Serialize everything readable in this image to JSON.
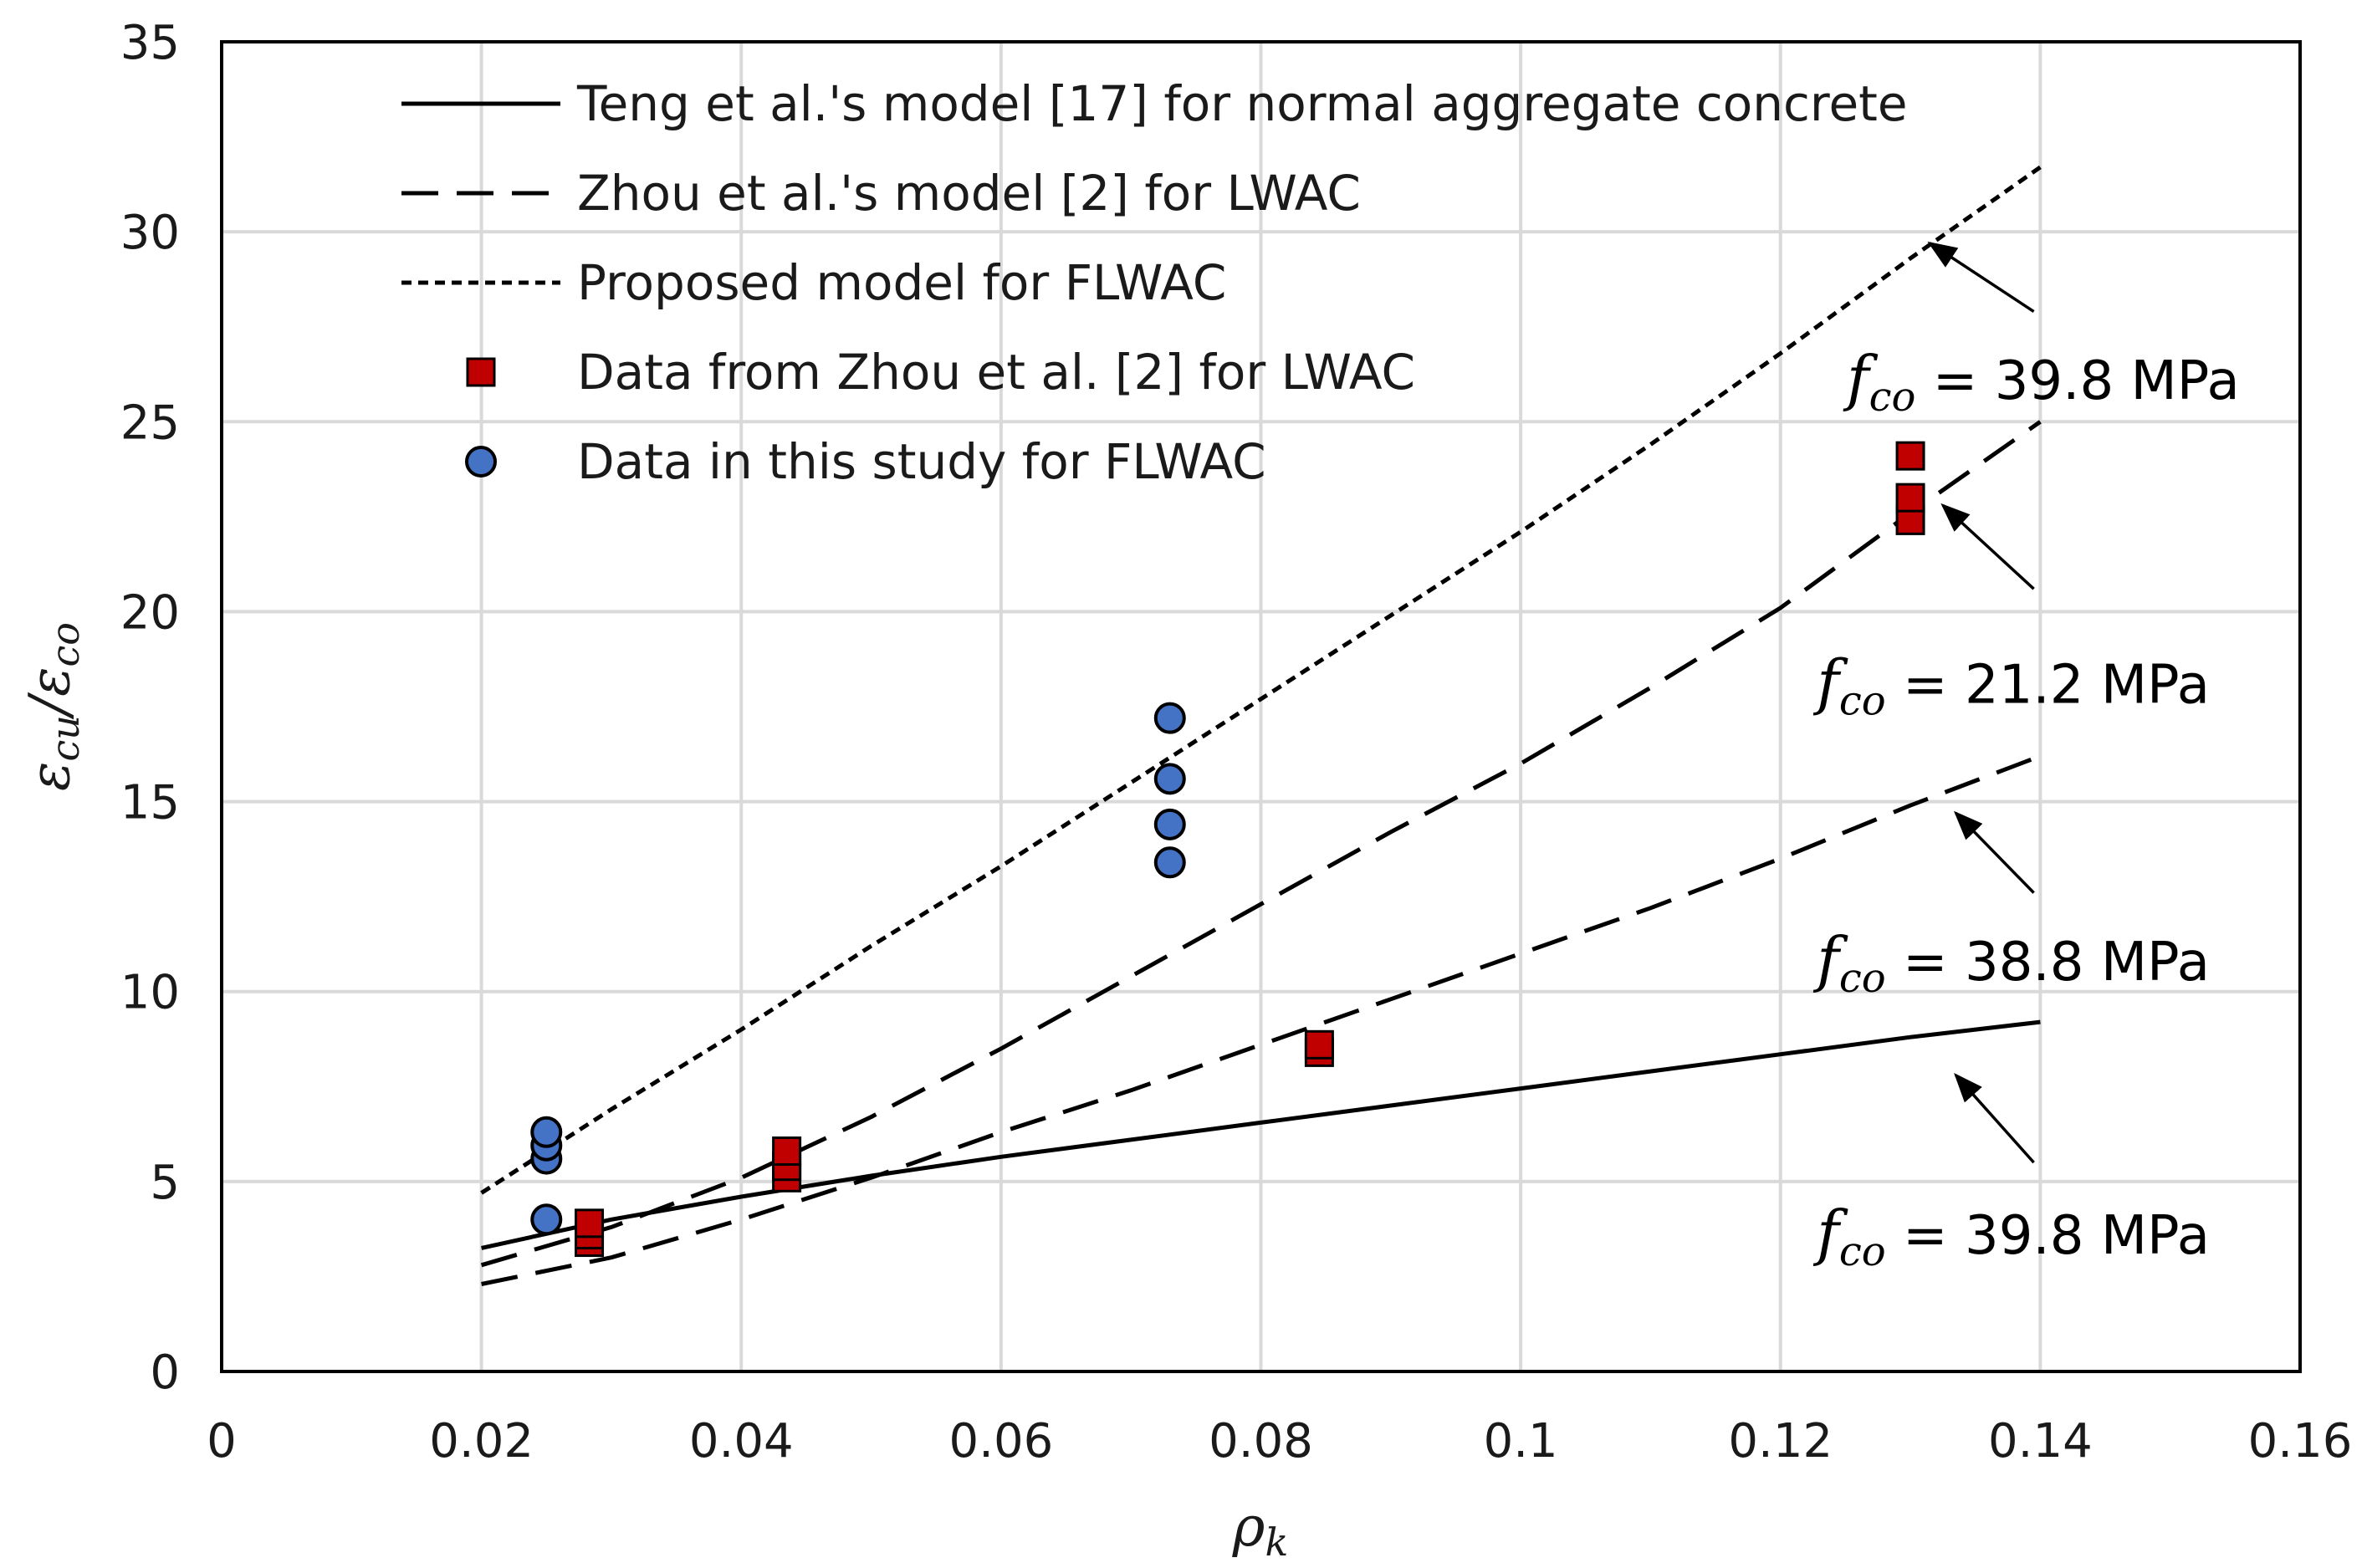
{
  "chart_data": {
    "type": "scatter",
    "title": "",
    "xlabel": "ρk",
    "ylabel": "εcu/εco",
    "xlim": [
      0,
      0.16
    ],
    "ylim": [
      0,
      35
    ],
    "xticks": [
      0,
      0.02,
      0.04,
      0.06,
      0.08,
      0.1,
      0.12,
      0.14,
      0.16
    ],
    "xtick_labels": [
      "0",
      "0.02",
      "0.04",
      "0.06",
      "0.08",
      "0.1",
      "0.12",
      "0.14",
      "0.16"
    ],
    "yticks": [
      0,
      5,
      10,
      15,
      20,
      25,
      30,
      35
    ],
    "ytick_labels": [
      "0",
      "5",
      "10",
      "15",
      "20",
      "25",
      "30",
      "35"
    ],
    "grid": true,
    "legend_position": "top-left",
    "series": [
      {
        "name": "Teng et al.'s model [17] for normal aggregate concrete",
        "kind": "line",
        "style": "solid",
        "x": [
          0.02,
          0.03,
          0.04,
          0.05,
          0.06,
          0.07,
          0.08,
          0.09,
          0.1,
          0.11,
          0.12,
          0.13,
          0.14
        ],
        "y": [
          3.25,
          4.0,
          4.6,
          5.15,
          5.65,
          6.1,
          6.55,
          7.0,
          7.45,
          7.9,
          8.35,
          8.8,
          9.2
        ]
      },
      {
        "name": "Zhou et al.'s model [2] for LWAC",
        "kind": "line",
        "style": "dashed",
        "annotation": "fco = 21.2 MPa",
        "x": [
          0.02,
          0.03,
          0.04,
          0.05,
          0.06,
          0.07,
          0.08,
          0.09,
          0.1,
          0.11,
          0.12,
          0.13,
          0.14
        ],
        "y": [
          2.8,
          3.8,
          5.1,
          6.7,
          8.5,
          10.4,
          12.3,
          14.2,
          16.0,
          18.0,
          20.1,
          22.6,
          25.0
        ]
      },
      {
        "name": "Zhou et al.'s model [2] for LWAC",
        "kind": "line",
        "style": "dashed",
        "annotation": "fco = 38.8 MPa",
        "show_in_legend": false,
        "x": [
          0.02,
          0.03,
          0.04,
          0.05,
          0.06,
          0.07,
          0.08,
          0.09,
          0.1,
          0.11,
          0.12,
          0.13,
          0.14
        ],
        "y": [
          2.3,
          3.0,
          4.0,
          5.1,
          6.3,
          7.4,
          8.6,
          9.8,
          11.0,
          12.2,
          13.5,
          14.9,
          16.2
        ]
      },
      {
        "name": "Proposed model for FLWAC",
        "kind": "line",
        "style": "dotted",
        "annotation": "fco = 39.8 MPa",
        "x": [
          0.02,
          0.03,
          0.04,
          0.05,
          0.06,
          0.07,
          0.08,
          0.09,
          0.1,
          0.11,
          0.12,
          0.13,
          0.14
        ],
        "y": [
          4.7,
          6.9,
          9.0,
          11.2,
          13.3,
          15.5,
          17.7,
          19.9,
          22.1,
          24.4,
          26.8,
          29.3,
          31.7
        ]
      },
      {
        "name": "Data from Zhou et al. [2] for LWAC",
        "kind": "scatter",
        "marker": "square",
        "color": "#C00000",
        "x": [
          0.0283,
          0.0283,
          0.0283,
          0.0435,
          0.0435,
          0.0435,
          0.0845,
          0.0845,
          0.13,
          0.13,
          0.13
        ],
        "y": [
          3.4,
          3.6,
          3.9,
          5.1,
          5.4,
          5.8,
          8.4,
          8.6,
          22.4,
          23.0,
          24.1
        ]
      },
      {
        "name": "Data in this study for FLWAC",
        "kind": "scatter",
        "marker": "circle",
        "color": "#4472C4",
        "x": [
          0.025,
          0.025,
          0.025,
          0.025,
          0.073,
          0.073,
          0.073,
          0.073
        ],
        "y": [
          4.0,
          5.6,
          5.95,
          6.3,
          13.4,
          14.4,
          15.6,
          17.2
        ]
      }
    ],
    "annotations": [
      {
        "sub": "co",
        "rest": " = 39.8 MPa",
        "target": "Proposed model for FLWAC",
        "tail": [
          0.1395,
          27.9
        ],
        "head": [
          0.1315,
          29.7
        ],
        "anchor": [
          0.1251,
          25.6
        ]
      },
      {
        "sub": "co",
        "rest": " = 21.2 MPa",
        "target": "Zhou et al.'s model [2] for LWAC (fco = 21.2 MPa)",
        "tail": [
          0.1395,
          20.6
        ],
        "head": [
          0.1325,
          22.8
        ],
        "anchor": [
          0.1228,
          17.6
        ]
      },
      {
        "sub": "co",
        "rest": " = 38.8 MPa",
        "target": "Zhou et al.'s model [2] for LWAC (fco = 38.8 MPa)",
        "tail": [
          0.1395,
          12.6
        ],
        "head": [
          0.1335,
          14.7
        ],
        "anchor": [
          0.1228,
          10.3
        ]
      },
      {
        "sub": "co",
        "rest": " = 39.8 MPa",
        "target": "Teng et al.'s model [17] for normal aggregate concrete",
        "tail": [
          0.1395,
          5.5
        ],
        "head": [
          0.1335,
          7.8
        ],
        "anchor": [
          0.1228,
          3.1
        ]
      }
    ]
  },
  "colors": {
    "grid": "#D9D9D9",
    "axis": "#000000",
    "line": "#000000",
    "square_fill": "#C00000",
    "circle_fill": "#4472C4"
  }
}
